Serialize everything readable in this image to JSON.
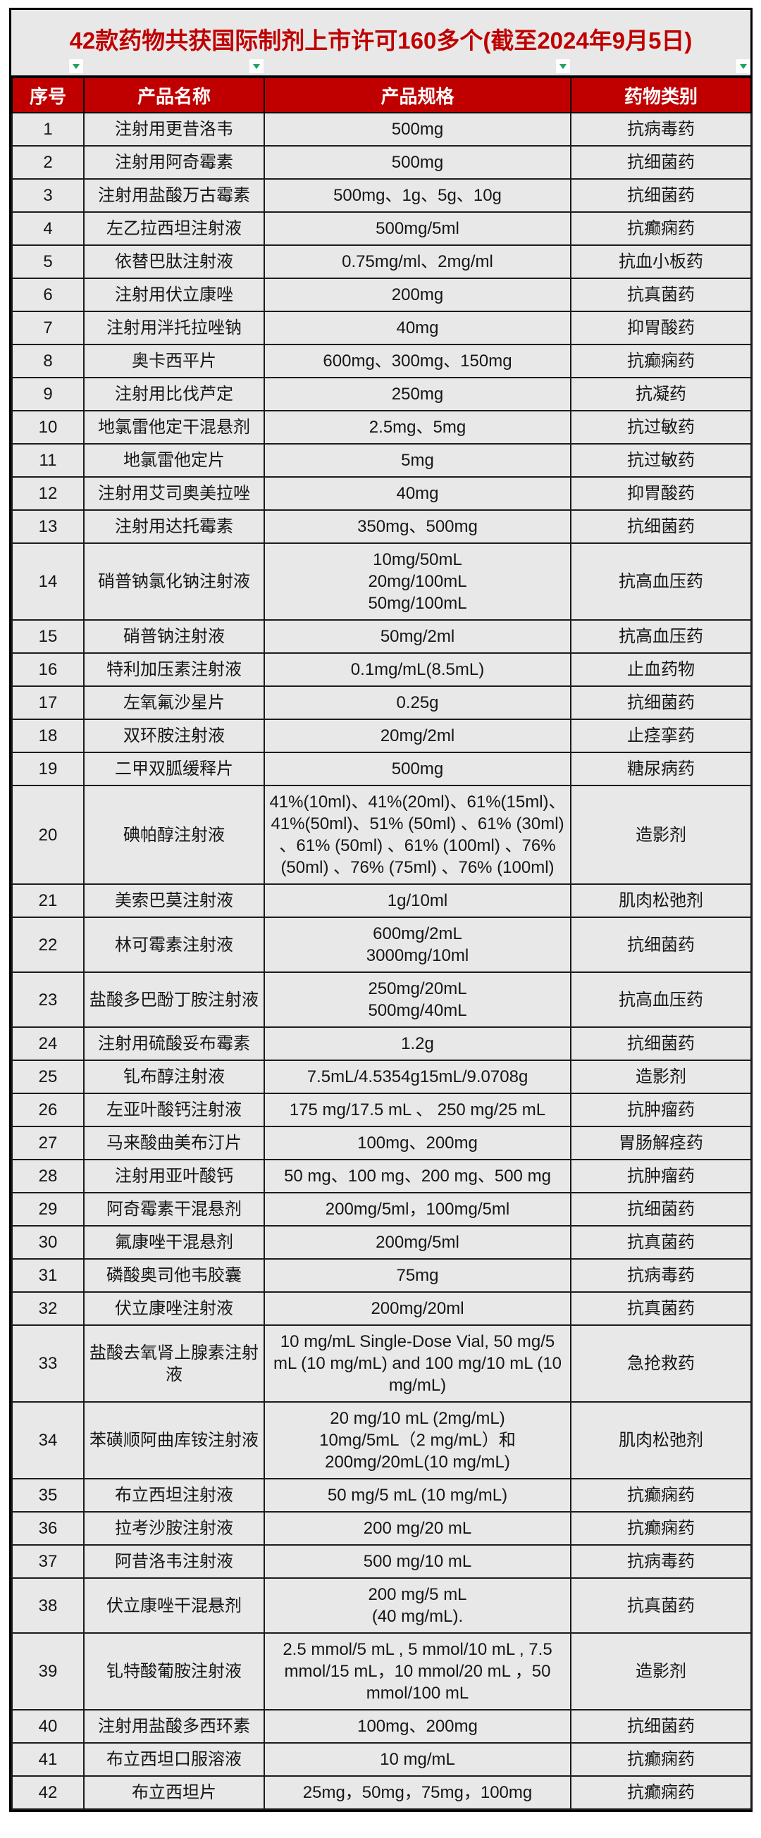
{
  "title": "42款药物共获国际制剂上市许可160多个(截至2024年9月5日)",
  "columns": [
    "序号",
    "产品名称",
    "产品规格",
    "药物类别"
  ],
  "filter_icons": [
    "filter-dropdown",
    "filter-dropdown",
    "filter-dropdown",
    "filter-dropdown"
  ],
  "colors": {
    "title_text": "#C00000",
    "header_bg": "#C00000",
    "header_text": "#FFFFFF",
    "cell_bg": "#E8E8E8",
    "grid_border": "#1C1C1C",
    "filter_green": "#21A05F"
  },
  "rows": [
    {
      "no": "1",
      "name": "注射用更昔洛韦",
      "spec": "500mg",
      "category": "抗病毒药"
    },
    {
      "no": "2",
      "name": "注射用阿奇霉素",
      "spec": "500mg",
      "category": "抗细菌药"
    },
    {
      "no": "3",
      "name": "注射用盐酸万古霉素",
      "spec": "500mg、1g、5g、10g",
      "category": "抗细菌药"
    },
    {
      "no": "4",
      "name": "左乙拉西坦注射液",
      "spec": "500mg/5ml",
      "category": "抗癫痫药"
    },
    {
      "no": "5",
      "name": "依替巴肽注射液",
      "spec": "0.75mg/ml、2mg/ml",
      "category": "抗血小板药"
    },
    {
      "no": "6",
      "name": "注射用伏立康唑",
      "spec": "200mg",
      "category": "抗真菌药"
    },
    {
      "no": "7",
      "name": "注射用泮托拉唑钠",
      "spec": "40mg",
      "category": "抑胃酸药"
    },
    {
      "no": "8",
      "name": "奥卡西平片",
      "spec": "600mg、300mg、150mg",
      "category": "抗癫痫药"
    },
    {
      "no": "9",
      "name": "注射用比伐芦定",
      "spec": "250mg",
      "category": "抗凝药"
    },
    {
      "no": "10",
      "name": "地氯雷他定干混悬剂",
      "spec": "2.5mg、5mg",
      "category": "抗过敏药"
    },
    {
      "no": "11",
      "name": "地氯雷他定片",
      "spec": "5mg",
      "category": "抗过敏药"
    },
    {
      "no": "12",
      "name": "注射用艾司奥美拉唑",
      "spec": "40mg",
      "category": "抑胃酸药"
    },
    {
      "no": "13",
      "name": "注射用达托霉素",
      "spec": "350mg、500mg",
      "category": "抗细菌药"
    },
    {
      "no": "14",
      "name": "硝普钠氯化钠注射液",
      "spec": "10mg/50mL\n20mg/100mL\n50mg/100mL",
      "category": "抗高血压药"
    },
    {
      "no": "15",
      "name": "硝普钠注射液",
      "spec": "50mg/2ml",
      "category": "抗高血压药"
    },
    {
      "no": "16",
      "name": "特利加压素注射液",
      "spec": "0.1mg/mL(8.5mL)",
      "category": "止血药物"
    },
    {
      "no": "17",
      "name": "左氧氟沙星片",
      "spec": "0.25g",
      "category": "抗细菌药"
    },
    {
      "no": "18",
      "name": "双环胺注射液",
      "spec": "20mg/2ml",
      "category": "止痉挛药"
    },
    {
      "no": "19",
      "name": "二甲双胍缓释片",
      "spec": "500mg",
      "category": "糖尿病药"
    },
    {
      "no": "20",
      "name": "碘帕醇注射液",
      "spec": "41%(10ml)、41%(20ml)、61%(15ml)、41%(50ml)、51% (50ml) 、61% (30ml) 、61% (50ml) 、61% (100ml) 、76% (50ml) 、76% (75ml) 、76% (100ml)",
      "category": "造影剂"
    },
    {
      "no": "21",
      "name": "美索巴莫注射液",
      "spec": "1g/10ml",
      "category": "肌肉松弛剂"
    },
    {
      "no": "22",
      "name": "林可霉素注射液",
      "spec": "600mg/2mL\n3000mg/10ml",
      "category": "抗细菌药"
    },
    {
      "no": "23",
      "name": "盐酸多巴酚丁胺注射液",
      "spec": "250mg/20mL\n500mg/40mL",
      "category": "抗高血压药"
    },
    {
      "no": "24",
      "name": "注射用硫酸妥布霉素",
      "spec": "1.2g",
      "category": "抗细菌药"
    },
    {
      "no": "25",
      "name": "钆布醇注射液",
      "spec": "7.5mL/4.5354g15mL/9.0708g",
      "category": "造影剂"
    },
    {
      "no": "26",
      "name": "左亚叶酸钙注射液",
      "spec": "175 mg/17.5 mL 、 250 mg/25 mL",
      "category": "抗肿瘤药"
    },
    {
      "no": "27",
      "name": "马来酸曲美布汀片",
      "spec": "100mg、200mg",
      "category": "胃肠解痉药"
    },
    {
      "no": "28",
      "name": "注射用亚叶酸钙",
      "spec": "50 mg、100 mg、200 mg、500 mg",
      "category": "抗肿瘤药"
    },
    {
      "no": "29",
      "name": "阿奇霉素干混悬剂",
      "spec": "200mg/5ml，100mg/5ml",
      "category": "抗细菌药"
    },
    {
      "no": "30",
      "name": "氟康唑干混悬剂",
      "spec": "200mg/5ml",
      "category": "抗真菌药"
    },
    {
      "no": "31",
      "name": "磷酸奥司他韦胶囊",
      "spec": "75mg",
      "category": "抗病毒药"
    },
    {
      "no": "32",
      "name": "伏立康唑注射液",
      "spec": "200mg/20ml",
      "category": "抗真菌药"
    },
    {
      "no": "33",
      "name": "盐酸去氧肾上腺素注射液",
      "spec": "10 mg/mL Single-Dose Vial, 50 mg/5 mL (10 mg/mL) and 100 mg/10 mL (10 mg/mL)",
      "category": "急抢救药"
    },
    {
      "no": "34",
      "name": "苯磺顺阿曲库铵注射液",
      "spec": "20 mg/10 mL (2mg/mL)\n10mg/5mL（2 mg/mL）和\n200mg/20mL(10 mg/mL)",
      "category": "肌肉松弛剂"
    },
    {
      "no": "35",
      "name": "布立西坦注射液",
      "spec": "50 mg/5 mL (10 mg/mL)",
      "category": "抗癫痫药"
    },
    {
      "no": "36",
      "name": "拉考沙胺注射液",
      "spec": "200 mg/20 mL",
      "category": "抗癫痫药"
    },
    {
      "no": "37",
      "name": "阿昔洛韦注射液",
      "spec": "500 mg/10 mL",
      "category": "抗病毒药"
    },
    {
      "no": "38",
      "name": "伏立康唑干混悬剂",
      "spec": "200 mg/5 mL\n(40 mg/mL).",
      "category": "抗真菌药"
    },
    {
      "no": "39",
      "name": "钆特酸葡胺注射液",
      "spec": "2.5 mmol/5 mL , 5 mmol/10 mL , 7.5 mmol/15 mL，10 mmol/20 mL ，50 mmol/100 mL",
      "category": "造影剂"
    },
    {
      "no": "40",
      "name": "注射用盐酸多西环素",
      "spec": "100mg、200mg",
      "category": "抗细菌药"
    },
    {
      "no": "41",
      "name": "布立西坦口服溶液",
      "spec": "10 mg/mL",
      "category": "抗癫痫药"
    },
    {
      "no": "42",
      "name": "布立西坦片",
      "spec": "25mg，50mg，75mg，100mg",
      "category": "抗癫痫药"
    }
  ]
}
